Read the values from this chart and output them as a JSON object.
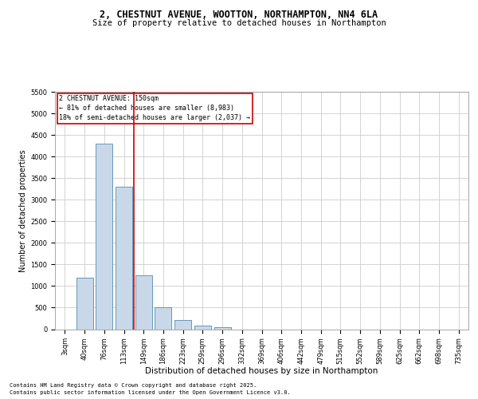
{
  "title1": "2, CHESTNUT AVENUE, WOOTTON, NORTHAMPTON, NN4 6LA",
  "title2": "Size of property relative to detached houses in Northampton",
  "xlabel": "Distribution of detached houses by size in Northampton",
  "ylabel": "Number of detached properties",
  "footer1": "Contains HM Land Registry data © Crown copyright and database right 2025.",
  "footer2": "Contains public sector information licensed under the Open Government Licence v3.0.",
  "annotation_line1": "2 CHESTNUT AVENUE: 150sqm",
  "annotation_line2": "← 81% of detached houses are smaller (8,983)",
  "annotation_line3": "18% of semi-detached houses are larger (2,037) →",
  "bar_color": "#c8d8e8",
  "bar_edge_color": "#6699bb",
  "red_line_color": "#cc0000",
  "grid_color": "#cccccc",
  "categories": [
    "3sqm",
    "40sqm",
    "76sqm",
    "113sqm",
    "149sqm",
    "186sqm",
    "223sqm",
    "259sqm",
    "296sqm",
    "332sqm",
    "369sqm",
    "406sqm",
    "442sqm",
    "479sqm",
    "515sqm",
    "552sqm",
    "589sqm",
    "625sqm",
    "662sqm",
    "698sqm",
    "735sqm"
  ],
  "values": [
    0,
    1200,
    4300,
    3300,
    1250,
    500,
    220,
    90,
    50,
    0,
    0,
    0,
    0,
    0,
    0,
    0,
    0,
    0,
    0,
    0,
    0
  ],
  "ylim": [
    0,
    5500
  ],
  "yticks": [
    0,
    500,
    1000,
    1500,
    2000,
    2500,
    3000,
    3500,
    4000,
    4500,
    5000,
    5500
  ],
  "red_line_xindex": 3.5,
  "title1_fontsize": 8.5,
  "title2_fontsize": 7.5,
  "ylabel_fontsize": 7,
  "xlabel_fontsize": 7.5,
  "tick_fontsize": 6,
  "ann_fontsize": 6,
  "footer_fontsize": 5
}
